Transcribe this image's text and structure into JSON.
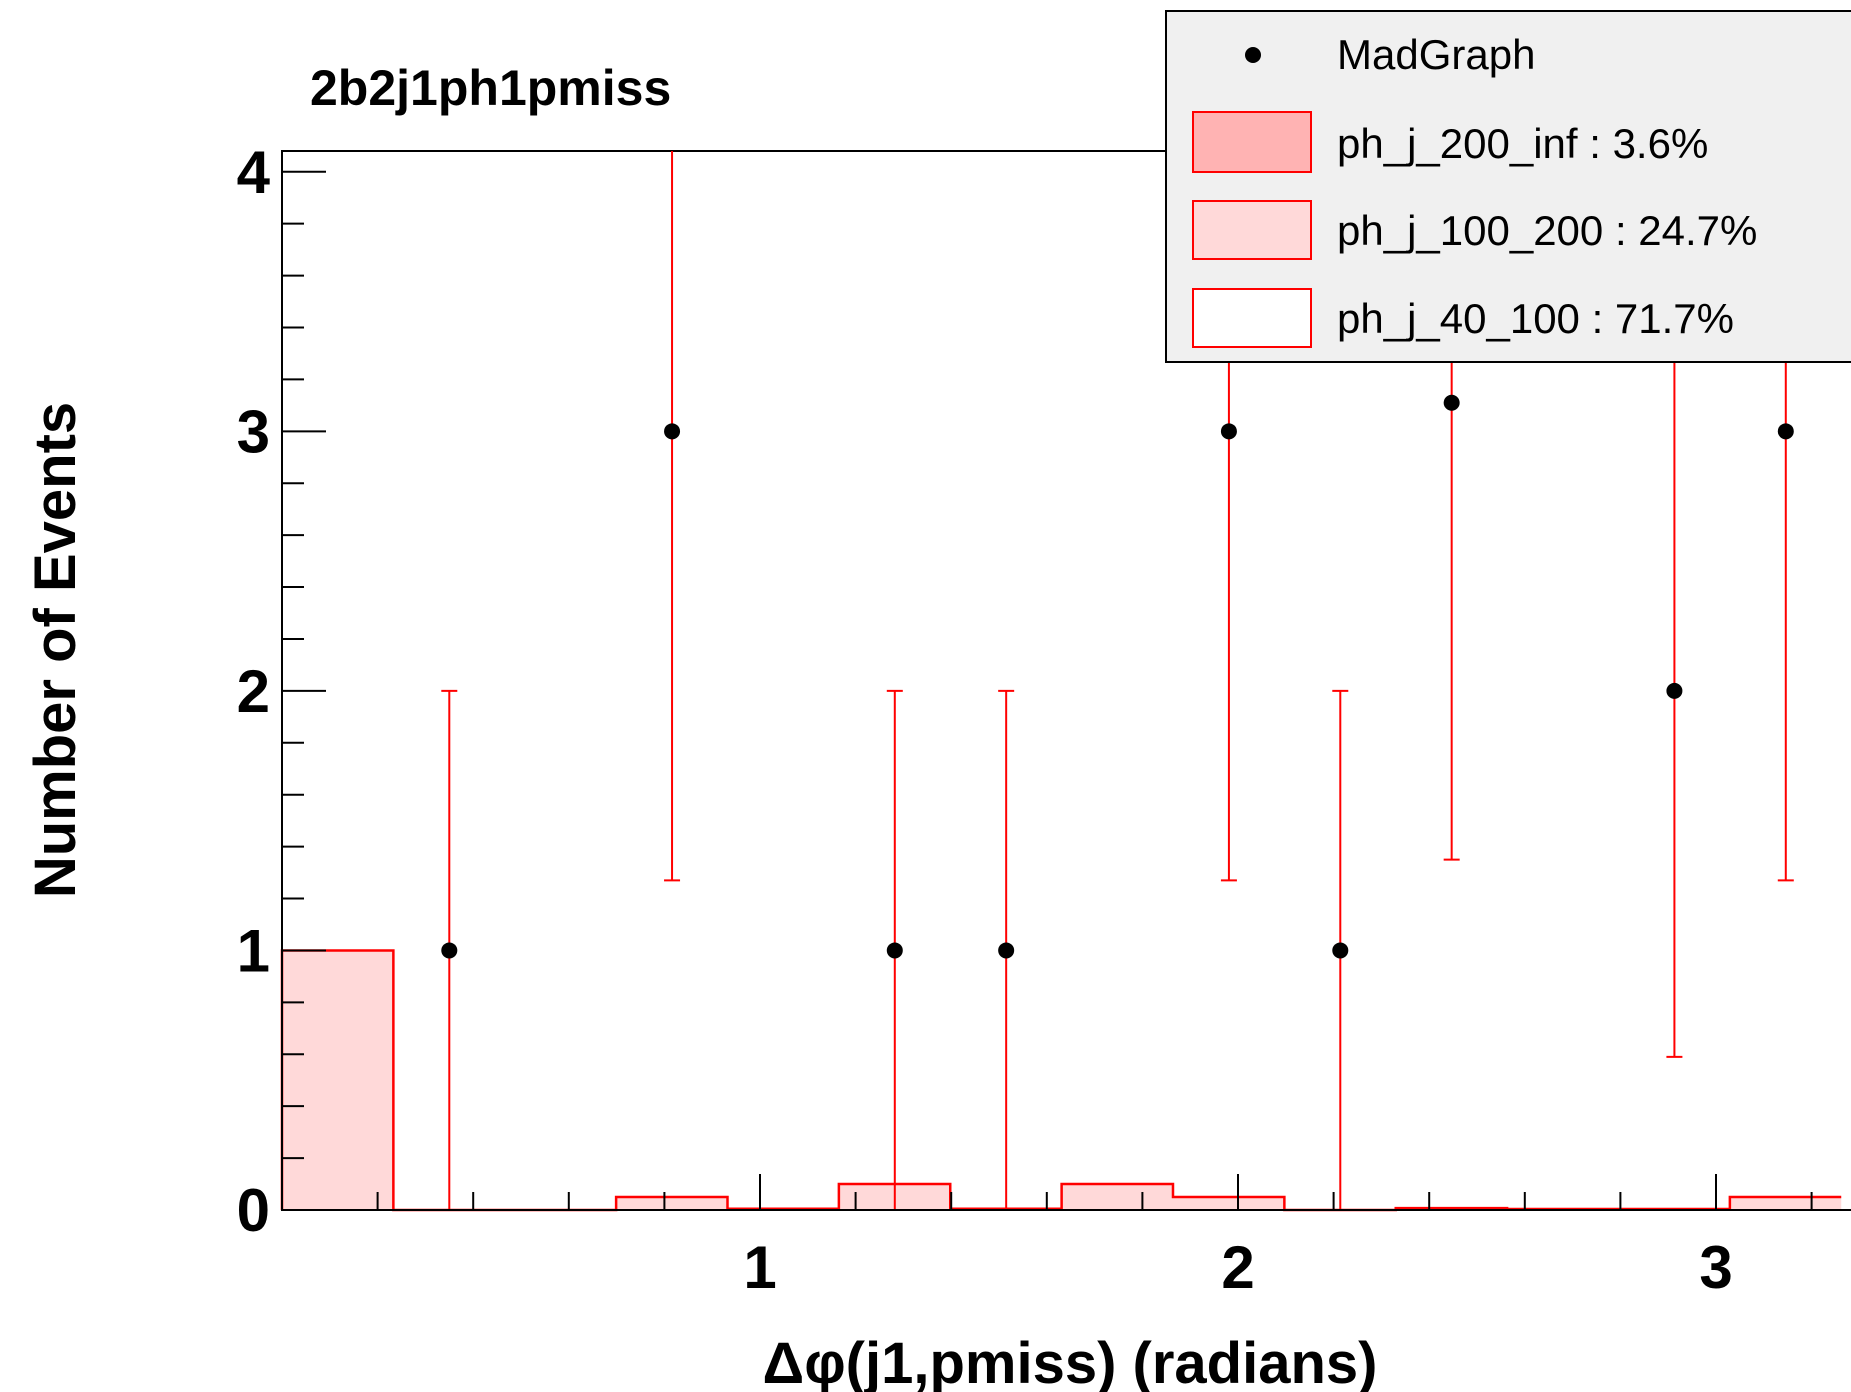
{
  "chart_data": {
    "type": "bar",
    "title": "2b2j1ph1pmiss",
    "xlabel": "Δφ(j1,pmiss) (radians)",
    "ylabel": "Number of Events",
    "xlim": [
      0,
      3.2
    ],
    "ylim": [
      0,
      4.08
    ],
    "x_ticks": [
      1,
      2,
      3
    ],
    "y_ticks": [
      0,
      1,
      2,
      3,
      4
    ],
    "legend": {
      "position": "top-right",
      "entries": [
        {
          "label": "MadGraph",
          "marker": "point",
          "color": "#000000"
        },
        {
          "label": "ph_j_200_inf : 3.6%",
          "fill": "#ffb3b3",
          "edge": "#ff0000"
        },
        {
          "label": "ph_j_100_200 : 24.7%",
          "fill": "#ffd9d9",
          "edge": "#ff0000"
        },
        {
          "label": "ph_j_40_100 : 71.7%",
          "fill": "#ffffff",
          "edge": "#ff0000"
        }
      ]
    },
    "stack_series": {
      "name": "ph_j_40_100",
      "bin_edges": [
        0.0,
        0.233,
        0.466,
        0.699,
        0.932,
        1.165,
        1.398,
        1.631,
        1.864,
        2.097,
        2.33,
        2.563,
        2.796,
        3.029,
        3.262
      ],
      "values": [
        1.0,
        0.0,
        0.0,
        0.05,
        0.005,
        0.1,
        0.005,
        0.1,
        0.05,
        0.0,
        0.007,
        0.004,
        0.004,
        0.05
      ]
    },
    "points": {
      "name": "MadGraph",
      "x": [
        0.35,
        0.816,
        1.282,
        1.515,
        1.981,
        2.214,
        2.447,
        2.913,
        3.146
      ],
      "y": [
        1,
        3,
        1,
        1,
        3,
        1,
        3.11,
        2,
        3
      ],
      "err_low": [
        1,
        1.73,
        1,
        1,
        1.73,
        1,
        1.76,
        1.41,
        1.73
      ],
      "err_high": [
        1,
        2.3,
        1,
        1,
        2.3,
        1,
        2.3,
        2.3,
        2.3
      ]
    },
    "colors": {
      "stack_edge": "#ff0000",
      "error_bar": "#ff0000",
      "point": "#000000",
      "legend_bg": "#f0f0f0"
    }
  }
}
